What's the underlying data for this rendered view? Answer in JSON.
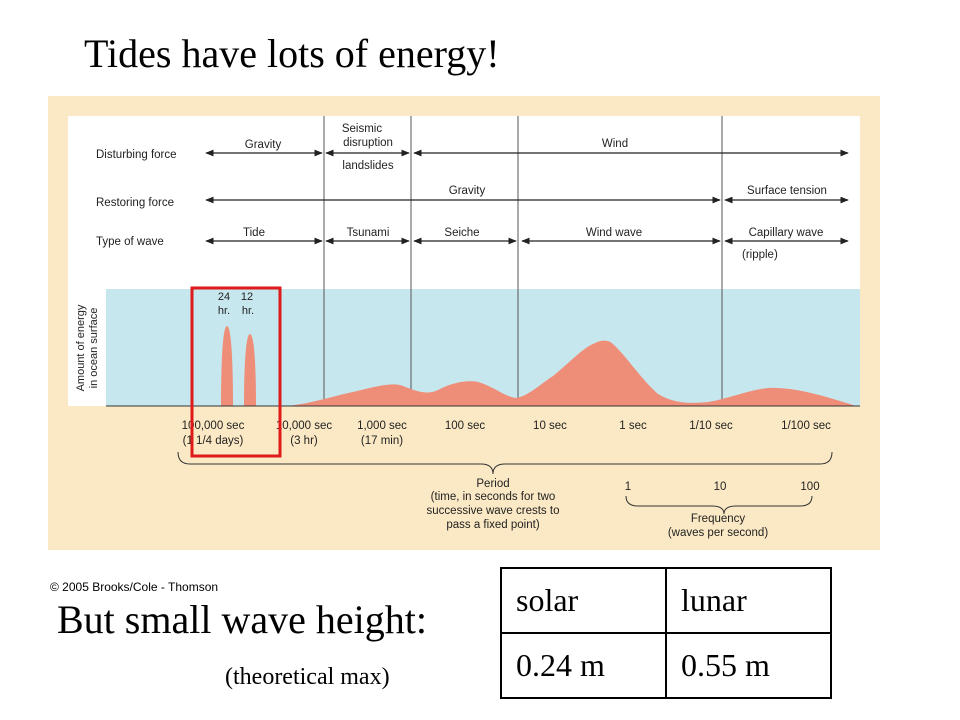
{
  "title": "Tides have lots of energy!",
  "figure": {
    "row_labels": {
      "disturbing": "Disturbing force",
      "restoring": "Restoring force",
      "wave_type": "Type of wave"
    },
    "disturbing": {
      "gravity": "Gravity",
      "seismic_1": "Seismic",
      "seismic_2": "disruption",
      "seismic_3": "landslides",
      "wind": "Wind"
    },
    "restoring": {
      "gravity": "Gravity",
      "surface_tension": "Surface tension"
    },
    "wave_types": {
      "tide": "Tide",
      "tsunami": "Tsunami",
      "seiche": "Seiche",
      "wind_wave": "Wind wave",
      "capillary": "Capillary wave",
      "ripple": "(ripple)"
    },
    "energy_axis_1": "Amount of energy",
    "energy_axis_2": "in ocean surface",
    "peak_24_a": "24",
    "peak_24_b": "hr.",
    "peak_12_a": "12",
    "peak_12_b": "hr.",
    "period_ticks": [
      {
        "line1": "100,000 sec",
        "line2": "(1 1/4 days)"
      },
      {
        "line1": "10,000 sec",
        "line2": "(3 hr)"
      },
      {
        "line1": "1,000 sec",
        "line2": "(17 min)"
      },
      {
        "line1": "100 sec",
        "line2": ""
      },
      {
        "line1": "10 sec",
        "line2": ""
      },
      {
        "line1": "1 sec",
        "line2": ""
      },
      {
        "line1": "1/10 sec",
        "line2": ""
      },
      {
        "line1": "1/100 sec",
        "line2": ""
      }
    ],
    "period_title": "Period",
    "period_desc_1": "(time, in seconds for two",
    "period_desc_2": "successive wave crests to",
    "period_desc_3": "pass a fixed point)",
    "freq_ticks": [
      "1",
      "10",
      "100"
    ],
    "freq_title": "Frequency",
    "freq_desc": "(waves per second)"
  },
  "copyright": "© 2005 Brooks/Cole - Thomson",
  "subtitle": "But small wave height:",
  "note": "(theoretical max)",
  "table": {
    "headers": [
      "solar",
      "lunar"
    ],
    "values": [
      "0.24 m",
      "0.55 m"
    ]
  },
  "colors": {
    "figure_background": "#fbe9c5",
    "energy_band": "#c6e7ee",
    "energy_curve": "#ef8e78",
    "highlight_box": "#e01a1a"
  }
}
